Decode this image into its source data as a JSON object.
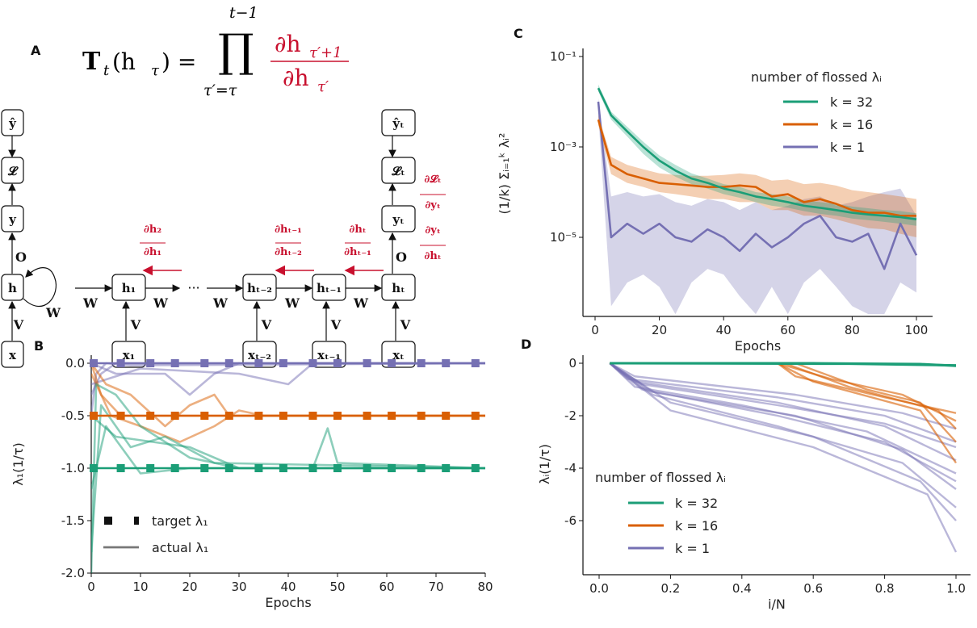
{
  "panel_labels": {
    "a": "A",
    "b": "B",
    "c": "C",
    "d": "D"
  },
  "colors": {
    "k32": "#1b9e77",
    "k16": "#d95f02",
    "k1": "#7570b3",
    "gradient": "#c8102e"
  },
  "equation": {
    "lhs": "T",
    "lhs_sub": "t",
    "lhs_arg": "(h",
    "lhs_arg_sub": "τ",
    "lhs_close": ") =",
    "prod": "∏",
    "prod_sup": "t−1",
    "prod_sub": "τ′=τ",
    "num": "∂h",
    "num_sub": "τ′+1",
    "den": "∂h",
    "den_sub": "τ′"
  },
  "diagram": {
    "folded": {
      "yhat": "ŷ",
      "loss": "𝓛",
      "y": "y",
      "h": "h",
      "x": "x",
      "O": "O",
      "V": "V",
      "W": "W"
    },
    "unrolled": {
      "h_nodes": [
        "h₁",
        "hₜ₋₂",
        "hₜ₋₁",
        "hₜ"
      ],
      "x_nodes": [
        "x₁",
        "xₜ₋₂",
        "xₜ₋₁",
        "xₜ"
      ],
      "yhat_t": "ŷₜ",
      "loss_t": "𝓛ₜ",
      "y_t": "yₜ",
      "ellipsis": "···",
      "W": "W",
      "V": "V",
      "O": "O"
    },
    "gradients": [
      {
        "num": "∂h₂",
        "den": "∂h₁"
      },
      {
        "num": "∂hₜ₋₁",
        "den": "∂hₜ₋₂"
      },
      {
        "num": "∂hₜ",
        "den": "∂hₜ₋₁"
      },
      {
        "num": "∂𝓛ₜ",
        "den": "∂yₜ"
      },
      {
        "num": "∂yₜ",
        "den": "∂hₜ"
      }
    ]
  },
  "chart_data": [
    {
      "panel": "B",
      "type": "line",
      "xlabel": "Epochs",
      "ylabel": "λ₁(1/τ)",
      "xlim": [
        0,
        80
      ],
      "ylim": [
        -2.0,
        0.05
      ],
      "xticks": [
        "0",
        "10",
        "20",
        "30",
        "40",
        "50",
        "60",
        "70",
        "80"
      ],
      "yticks": [
        "0.0",
        "-0.5",
        "-1.0",
        "-1.5",
        "-2.0"
      ],
      "legend": {
        "placement": "lower-left",
        "entries": [
          "target λ₁",
          "actual λ₁"
        ]
      },
      "targets": {
        "epochs": [
          0.5,
          6,
          12,
          17,
          23,
          28,
          34,
          39,
          45,
          50,
          56,
          61,
          67,
          72,
          78
        ],
        "series": [
          {
            "color": "k1",
            "value": 0.0
          },
          {
            "color": "k16",
            "value": -0.5
          },
          {
            "color": "k32",
            "value": -1.0
          }
        ]
      },
      "actual": [
        {
          "color": "k1",
          "x": [
            0,
            2,
            5,
            80
          ],
          "y": [
            -0.3,
            -0.1,
            0,
            0
          ]
        },
        {
          "color": "k1",
          "x": [
            0,
            5,
            15,
            20,
            25,
            30,
            80
          ],
          "y": [
            0,
            -0.1,
            -0.1,
            -0.3,
            -0.1,
            0,
            0
          ]
        },
        {
          "color": "k1",
          "x": [
            0,
            10,
            30,
            40,
            45,
            80
          ],
          "y": [
            -0.2,
            -0.05,
            -0.1,
            -0.2,
            0,
            0
          ]
        },
        {
          "color": "k1",
          "x": [
            0,
            1,
            3,
            8,
            80
          ],
          "y": [
            -0.5,
            -0.1,
            0,
            -0.02,
            0
          ]
        },
        {
          "color": "k16",
          "x": [
            0,
            2,
            6,
            80
          ],
          "y": [
            0,
            -0.3,
            -0.5,
            -0.5
          ]
        },
        {
          "color": "k16",
          "x": [
            0,
            4,
            10,
            18,
            25,
            30,
            35,
            80
          ],
          "y": [
            -0.1,
            -0.5,
            -0.6,
            -0.75,
            -0.6,
            -0.45,
            -0.5,
            -0.5
          ]
        },
        {
          "color": "k16",
          "x": [
            0,
            3,
            8,
            15,
            20,
            25,
            28,
            80
          ],
          "y": [
            0,
            -0.2,
            -0.3,
            -0.6,
            -0.4,
            -0.3,
            -0.5,
            -0.5
          ]
        },
        {
          "color": "k32",
          "x": [
            0,
            1,
            5,
            10,
            20,
            30,
            80
          ],
          "y": [
            -2,
            -0.2,
            -0.3,
            -0.6,
            -0.9,
            -1,
            -1
          ]
        },
        {
          "color": "k32",
          "x": [
            0,
            2,
            8,
            15,
            25,
            80
          ],
          "y": [
            -1.8,
            -0.4,
            -0.8,
            -0.7,
            -0.95,
            -1
          ]
        },
        {
          "color": "k32",
          "x": [
            0,
            3,
            10,
            20,
            80
          ],
          "y": [
            -1.2,
            -0.6,
            -1.05,
            -1,
            -1
          ]
        },
        {
          "color": "k32",
          "x": [
            0,
            5,
            20,
            30,
            45,
            48,
            50,
            80
          ],
          "y": [
            -0.5,
            -0.7,
            -0.8,
            -1.0,
            -1,
            -0.62,
            -0.95,
            -1
          ]
        }
      ]
    },
    {
      "panel": "C",
      "type": "line",
      "xlabel": "Epochs",
      "ylabel": "(1/k) Σᵢ₌₁ᵏ λᵢ²",
      "yscale": "log",
      "xlim": [
        0,
        100
      ],
      "ylim": [
        1.8e-07,
        0.15
      ],
      "xticks": [
        "0",
        "20",
        "40",
        "60",
        "80",
        "100"
      ],
      "yticks": [
        {
          "value": 0.1,
          "label": "10⁻¹"
        },
        {
          "value": 0.001,
          "label": "10⁻³"
        },
        {
          "value": 1e-05,
          "label": "10⁻⁵"
        }
      ],
      "legend": {
        "placement": "top-right",
        "title": "number of flossed λᵢ",
        "entries": [
          "k = 32",
          "k = 16",
          "k = 1"
        ]
      },
      "x": [
        1,
        5,
        10,
        15,
        20,
        25,
        30,
        35,
        40,
        45,
        50,
        55,
        60,
        65,
        70,
        75,
        80,
        85,
        90,
        95,
        100
      ],
      "series": [
        {
          "name": "k = 32",
          "color": "k32",
          "values": [
            0.02,
            0.005,
            0.0022,
            0.001,
            0.0005,
            0.0003,
            0.0002,
            0.00016,
            0.00012,
            0.0001,
            8e-05,
            7e-05,
            6e-05,
            5e-05,
            4.5e-05,
            4e-05,
            3.5e-05,
            3.2e-05,
            3e-05,
            2.8e-05,
            2.5e-05
          ],
          "lower": [
            0.017,
            0.004,
            0.0017,
            0.0007,
            0.00035,
            0.00022,
            0.00015,
            0.00012,
            9e-05,
            7.5e-05,
            6e-05,
            5e-05,
            4.5e-05,
            3.8e-05,
            3.3e-05,
            3e-05,
            2.6e-05,
            2.4e-05,
            2.2e-05,
            2e-05,
            1.8e-05
          ],
          "upper": [
            0.024,
            0.006,
            0.0028,
            0.0013,
            0.00065,
            0.0004,
            0.00026,
            0.0002,
            0.00015,
            0.00013,
            0.0001,
            9e-05,
            8e-05,
            6.5e-05,
            6e-05,
            5.5e-05,
            4.8e-05,
            4.4e-05,
            4e-05,
            3.8e-05,
            3.4e-05
          ]
        },
        {
          "name": "k = 16",
          "color": "k16",
          "values": [
            0.004,
            0.0004,
            0.00025,
            0.0002,
            0.00016,
            0.00015,
            0.00014,
            0.00013,
            0.00013,
            0.00014,
            0.00013,
            8e-05,
            9e-05,
            6e-05,
            7e-05,
            5.5e-05,
            4e-05,
            3.5e-05,
            3.5e-05,
            3e-05,
            3e-05
          ],
          "lower": [
            0.003,
            0.00025,
            0.00016,
            0.00013,
            0.0001,
            9e-05,
            8e-05,
            7e-05,
            7e-05,
            6e-05,
            6e-05,
            4e-05,
            4e-05,
            3e-05,
            3e-05,
            2.5e-05,
            2e-05,
            1.6e-05,
            1.5e-05,
            1.2e-05,
            1e-05
          ],
          "upper": [
            0.005,
            0.0006,
            0.0004,
            0.00032,
            0.00026,
            0.00024,
            0.00023,
            0.00023,
            0.00024,
            0.00026,
            0.00024,
            0.00018,
            0.00019,
            0.00015,
            0.00016,
            0.00014,
            0.00011,
            0.0001,
            9e-05,
            8e-05,
            7e-05
          ]
        },
        {
          "name": "k = 1",
          "color": "k1",
          "values": [
            0.01,
            1e-05,
            2e-05,
            1.2e-05,
            2e-05,
            1e-05,
            8e-06,
            1.5e-05,
            1e-05,
            5e-06,
            1.2e-05,
            6e-06,
            1e-05,
            2e-05,
            3e-05,
            1e-05,
            8e-06,
            1.2e-05,
            2e-06,
            2e-05,
            4e-06
          ],
          "lower": [
            0.005,
            3e-07,
            1e-06,
            1.5e-06,
            8e-07,
            2e-07,
            1e-06,
            2e-06,
            1.5e-06,
            5e-07,
            2e-07,
            8e-07,
            2e-07,
            1e-06,
            2e-06,
            8e-07,
            3e-07,
            2e-07,
            2e-07,
            1e-06,
            6e-07
          ],
          "upper": [
            0.012,
            8e-05,
            0.0001,
            8e-05,
            9e-05,
            6e-05,
            5e-05,
            7e-05,
            6e-05,
            4e-05,
            6e-05,
            4e-05,
            5e-05,
            7e-05,
            8e-05,
            5e-05,
            6e-05,
            8e-05,
            0.0001,
            0.00012,
            3e-05
          ]
        }
      ]
    },
    {
      "panel": "D",
      "type": "line",
      "xlabel": "i/N",
      "ylabel": "λᵢ(1/τ)",
      "xlim": [
        -0.03,
        1.03
      ],
      "ylim": [
        -8.0,
        0.3
      ],
      "xticks": [
        "0.0",
        "0.2",
        "0.4",
        "0.6",
        "0.8",
        "1.0"
      ],
      "yticks": [
        "0",
        "-2",
        "-4",
        "-6"
      ],
      "legend": {
        "placement": "lower-left",
        "title": "number of flossed λᵢ",
        "entries": [
          "k = 32",
          "k = 16",
          "k = 1"
        ]
      },
      "traces": [
        {
          "color": "k32",
          "x": [
            0.03,
            0.6,
            0.9,
            1.0
          ],
          "y": [
            0,
            0,
            -0.03,
            -0.1
          ]
        },
        {
          "color": "k32",
          "x": [
            0.03,
            0.7,
            1.0
          ],
          "y": [
            0,
            -0.02,
            -0.08
          ]
        },
        {
          "color": "k16",
          "x": [
            0.03,
            0.5,
            0.55,
            0.8,
            1.0
          ],
          "y": [
            0,
            0,
            -0.5,
            -1.3,
            -1.9
          ]
        },
        {
          "color": "k16",
          "x": [
            0.03,
            0.5,
            0.6,
            0.9,
            1.0
          ],
          "y": [
            0,
            0,
            -0.7,
            -1.8,
            -3.8
          ]
        },
        {
          "color": "k16",
          "x": [
            0.03,
            0.52,
            0.7,
            0.95,
            1.0
          ],
          "y": [
            0,
            0,
            -0.9,
            -1.8,
            -2.5
          ]
        },
        {
          "color": "k16",
          "x": [
            0.03,
            0.5,
            0.65,
            0.85,
            1.0
          ],
          "y": [
            0,
            0,
            -0.6,
            -1.2,
            -2.2
          ]
        },
        {
          "color": "k16",
          "x": [
            0.03,
            0.55,
            0.75,
            0.9,
            1.0
          ],
          "y": [
            0,
            0,
            -1.0,
            -1.5,
            -3.0
          ]
        },
        {
          "color": "k1",
          "x": [
            0.03,
            0.08,
            0.5,
            0.8,
            1.0
          ],
          "y": [
            0,
            -0.6,
            -1.3,
            -2.0,
            -3.0
          ]
        },
        {
          "color": "k1",
          "x": [
            0.03,
            0.1,
            0.5,
            0.8,
            1.0
          ],
          "y": [
            0,
            -0.7,
            -1.5,
            -2.4,
            -3.7
          ]
        },
        {
          "color": "k1",
          "x": [
            0.03,
            0.1,
            0.4,
            0.75,
            1.0
          ],
          "y": [
            0,
            -0.9,
            -1.6,
            -2.6,
            -4.2
          ]
        },
        {
          "color": "k1",
          "x": [
            0.03,
            0.12,
            0.5,
            0.8,
            1.0
          ],
          "y": [
            0,
            -1.0,
            -2.0,
            -3.0,
            -4.5
          ]
        },
        {
          "color": "k1",
          "x": [
            0.03,
            0.15,
            0.5,
            0.85,
            1.0
          ],
          "y": [
            0,
            -1.2,
            -2.4,
            -3.8,
            -5.5
          ]
        },
        {
          "color": "k1",
          "x": [
            0.03,
            0.2,
            0.6,
            0.9,
            1.0
          ],
          "y": [
            0,
            -1.5,
            -2.8,
            -4.5,
            -6.0
          ]
        },
        {
          "color": "k1",
          "x": [
            0.03,
            0.2,
            0.6,
            0.92,
            1.0
          ],
          "y": [
            0,
            -1.8,
            -3.2,
            -5.0,
            -7.2
          ]
        },
        {
          "color": "k1",
          "x": [
            0.03,
            0.1,
            0.55,
            0.85,
            1.0
          ],
          "y": [
            0,
            -0.5,
            -1.2,
            -1.9,
            -2.5
          ]
        },
        {
          "color": "k1",
          "x": [
            0.03,
            0.12,
            0.5,
            0.8,
            1.0
          ],
          "y": [
            0,
            -0.8,
            -1.6,
            -2.3,
            -3.2
          ]
        },
        {
          "color": "k1",
          "x": [
            0.03,
            0.15,
            0.55,
            0.85,
            1.0
          ],
          "y": [
            0,
            -1.1,
            -2.0,
            -3.3,
            -4.8
          ]
        }
      ]
    }
  ]
}
